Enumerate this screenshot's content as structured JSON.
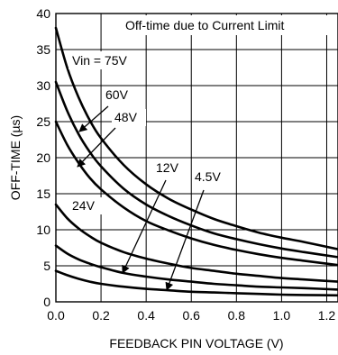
{
  "chart_data": {
    "type": "line",
    "title": "Off-time due to Current Limit",
    "xlabel": "FEEDBACK PIN VOLTAGE (V)",
    "ylabel": "OFF-TIME (µs)",
    "xlim": [
      0,
      1.25
    ],
    "ylim": [
      0,
      40
    ],
    "xticks": [
      "0.0",
      "0.2",
      "0.4",
      "0.6",
      "0.8",
      "1.0",
      "1.2"
    ],
    "yticks": [
      "0",
      "5",
      "10",
      "15",
      "20",
      "25",
      "30",
      "35",
      "40"
    ],
    "grid": true,
    "series": [
      {
        "name": "Vin = 75V",
        "x": [
          0,
          0.05,
          0.1,
          0.15,
          0.2,
          0.3,
          0.4,
          0.5,
          0.6,
          0.7,
          0.8,
          0.9,
          1.0,
          1.1,
          1.25
        ],
        "y": [
          38.0,
          32.5,
          28.4,
          25.2,
          22.7,
          19.0,
          16.3,
          14.3,
          12.8,
          11.5,
          10.5,
          9.6,
          8.9,
          8.3,
          7.3
        ]
      },
      {
        "name": "60V",
        "x": [
          0,
          0.05,
          0.1,
          0.15,
          0.2,
          0.3,
          0.4,
          0.5,
          0.6,
          0.7,
          0.8,
          0.9,
          1.0,
          1.1,
          1.25
        ],
        "y": [
          30.5,
          26.5,
          23.3,
          20.8,
          18.8,
          15.7,
          13.5,
          11.9,
          10.6,
          9.5,
          8.7,
          8.0,
          7.4,
          6.9,
          6.2
        ]
      },
      {
        "name": "48V",
        "x": [
          0,
          0.05,
          0.1,
          0.15,
          0.2,
          0.3,
          0.4,
          0.5,
          0.6,
          0.7,
          0.8,
          0.9,
          1.0,
          1.1,
          1.25
        ],
        "y": [
          25.0,
          21.8,
          19.3,
          17.2,
          15.6,
          13.1,
          11.2,
          9.9,
          8.8,
          7.9,
          7.2,
          6.6,
          6.1,
          5.7,
          5.1
        ]
      },
      {
        "name": "24V",
        "x": [
          0,
          0.05,
          0.1,
          0.15,
          0.2,
          0.3,
          0.4,
          0.5,
          0.6,
          0.7,
          0.8,
          0.9,
          1.0,
          1.1,
          1.25
        ],
        "y": [
          13.5,
          11.6,
          10.2,
          9.1,
          8.2,
          6.9,
          6.0,
          5.3,
          4.7,
          4.3,
          3.9,
          3.6,
          3.3,
          3.1,
          2.8
        ]
      },
      {
        "name": "12V",
        "x": [
          0,
          0.05,
          0.1,
          0.15,
          0.2,
          0.3,
          0.4,
          0.5,
          0.6,
          0.7,
          0.8,
          0.9,
          1.0,
          1.1,
          1.25
        ],
        "y": [
          7.8,
          6.7,
          5.9,
          5.3,
          4.8,
          4.0,
          3.5,
          3.1,
          2.8,
          2.5,
          2.3,
          2.1,
          2.0,
          1.9,
          1.7
        ]
      },
      {
        "name": "4.5V",
        "x": [
          0,
          0.05,
          0.1,
          0.15,
          0.2,
          0.3,
          0.4,
          0.5,
          0.6,
          0.7,
          0.8,
          0.9,
          1.0,
          1.1,
          1.25
        ],
        "y": [
          4.3,
          3.7,
          3.2,
          2.8,
          2.5,
          2.1,
          1.8,
          1.6,
          1.4,
          1.3,
          1.2,
          1.1,
          1.0,
          0.95,
          0.9
        ]
      }
    ]
  }
}
